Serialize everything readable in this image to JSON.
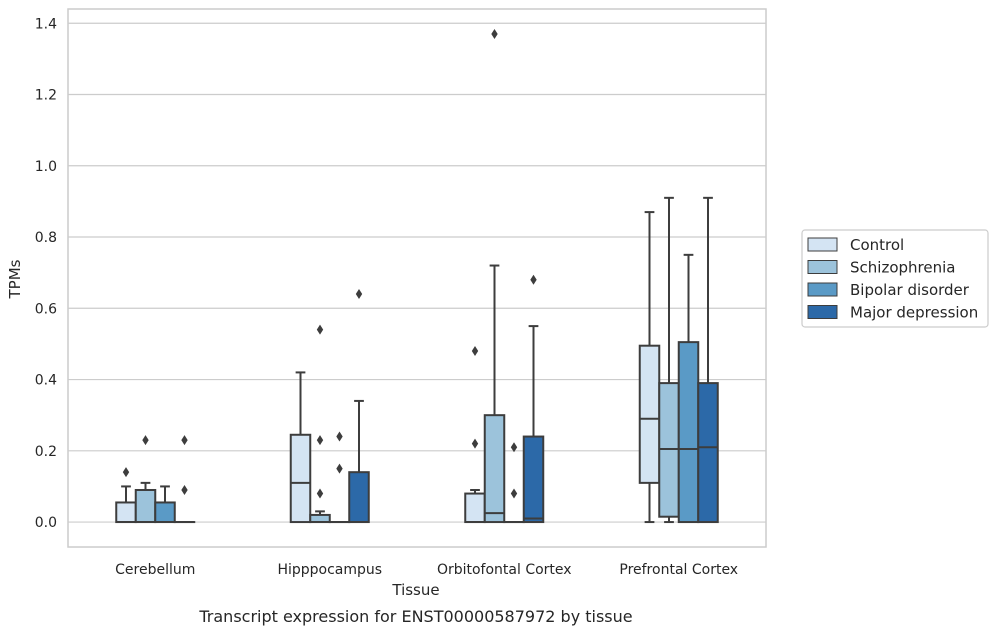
{
  "chart_data": {
    "type": "box",
    "title": "",
    "caption": "Transcript expression for ENST00000587972 by tissue",
    "xlabel": "Tissue",
    "ylabel": "TPMs",
    "ylim": [
      -0.07,
      1.44
    ],
    "yticks": [
      0.0,
      0.2,
      0.4,
      0.6,
      0.8,
      1.0,
      1.2,
      1.4
    ],
    "ytick_labels": [
      "0.0",
      "0.2",
      "0.4",
      "0.6",
      "0.8",
      "1.0",
      "1.2",
      "1.4"
    ],
    "grid": true,
    "legend_position": "right",
    "categories": [
      "Cerebellum",
      "Hipppocampus",
      "Orbitofontal Cortex",
      "Prefrontal Cortex"
    ],
    "series": [
      {
        "name": "Control",
        "color": "#d4e4f3",
        "boxes": [
          {
            "q1": 0.0,
            "median": 0.0,
            "q3": 0.055,
            "whisker_low": 0.0,
            "whisker_high": 0.1,
            "outliers": [
              0.14
            ]
          },
          {
            "q1": 0.0,
            "median": 0.11,
            "q3": 0.245,
            "whisker_low": 0.0,
            "whisker_high": 0.42,
            "outliers": []
          },
          {
            "q1": 0.0,
            "median": 0.0,
            "q3": 0.08,
            "whisker_low": 0.0,
            "whisker_high": 0.09,
            "outliers": [
              0.22,
              0.48
            ]
          },
          {
            "q1": 0.11,
            "median": 0.29,
            "q3": 0.495,
            "whisker_low": 0.0,
            "whisker_high": 0.87,
            "outliers": []
          }
        ]
      },
      {
        "name": "Schizophrenia",
        "color": "#9cc3db",
        "boxes": [
          {
            "q1": 0.0,
            "median": 0.0,
            "q3": 0.09,
            "whisker_low": 0.0,
            "whisker_high": 0.11,
            "outliers": [
              0.23
            ]
          },
          {
            "q1": 0.0,
            "median": 0.0,
            "q3": 0.02,
            "whisker_low": 0.0,
            "whisker_high": 0.03,
            "outliers": [
              0.08,
              0.23,
              0.54
            ]
          },
          {
            "q1": 0.0,
            "median": 0.025,
            "q3": 0.3,
            "whisker_low": 0.0,
            "whisker_high": 0.72,
            "outliers": [
              1.37
            ]
          },
          {
            "q1": 0.015,
            "median": 0.205,
            "q3": 0.39,
            "whisker_low": 0.0,
            "whisker_high": 0.91,
            "outliers": []
          }
        ]
      },
      {
        "name": "Bipolar disorder",
        "color": "#5a9ac6",
        "boxes": [
          {
            "q1": 0.0,
            "median": 0.0,
            "q3": 0.055,
            "whisker_low": 0.0,
            "whisker_high": 0.1,
            "outliers": []
          },
          {
            "q1": 0.0,
            "median": 0.0,
            "q3": 0.0,
            "whisker_low": 0.0,
            "whisker_high": 0.0,
            "outliers": [
              0.15,
              0.24
            ]
          },
          {
            "q1": 0.0,
            "median": 0.0,
            "q3": 0.0,
            "whisker_low": 0.0,
            "whisker_high": 0.0,
            "outliers": [
              0.08,
              0.21
            ]
          },
          {
            "q1": 0.0,
            "median": 0.205,
            "q3": 0.505,
            "whisker_low": 0.0,
            "whisker_high": 0.75,
            "outliers": []
          }
        ]
      },
      {
        "name": "Major depression",
        "color": "#2c69a8",
        "boxes": [
          {
            "q1": 0.0,
            "median": 0.0,
            "q3": 0.0,
            "whisker_low": 0.0,
            "whisker_high": 0.0,
            "outliers": [
              0.09,
              0.23
            ]
          },
          {
            "q1": 0.0,
            "median": 0.0,
            "q3": 0.14,
            "whisker_low": 0.0,
            "whisker_high": 0.34,
            "outliers": [
              0.64
            ]
          },
          {
            "q1": 0.0,
            "median": 0.01,
            "q3": 0.24,
            "whisker_low": 0.0,
            "whisker_high": 0.55,
            "outliers": [
              0.68
            ]
          },
          {
            "q1": 0.0,
            "median": 0.21,
            "q3": 0.39,
            "whisker_low": 0.0,
            "whisker_high": 0.91,
            "outliers": []
          }
        ]
      }
    ]
  }
}
